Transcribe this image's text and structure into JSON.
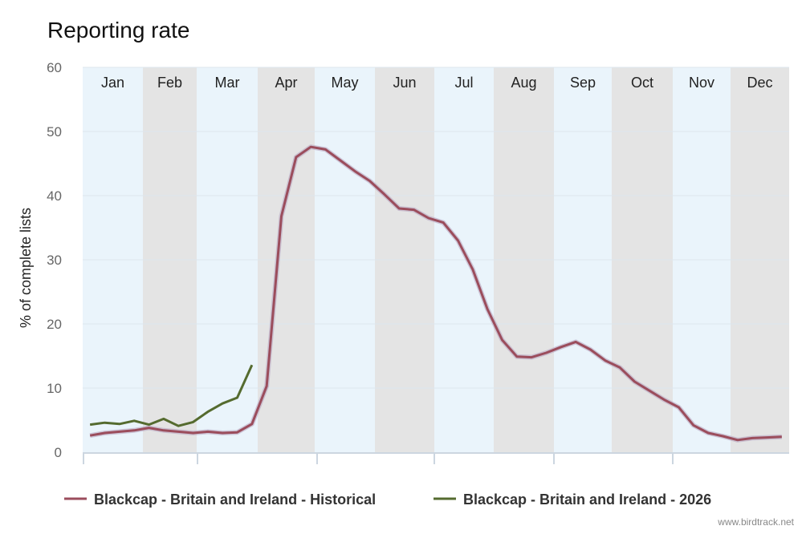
{
  "chart_data": {
    "type": "line",
    "title": "Reporting rate",
    "ylabel": "% of complete lists",
    "xlabel": "",
    "ylim": [
      0,
      60
    ],
    "yticks": [
      0,
      10,
      20,
      30,
      40,
      50,
      60
    ],
    "months": [
      "Jan",
      "Feb",
      "Mar",
      "Apr",
      "May",
      "Jun",
      "Jul",
      "Aug",
      "Sep",
      "Oct",
      "Nov",
      "Dec"
    ],
    "points_per_year": 48,
    "grid": true,
    "legend_position": "bottom",
    "series": [
      {
        "name": "Blackcap - Britain and Ireland - Historical",
        "color": "#9b4d5c",
        "values": [
          2.6,
          3.0,
          3.2,
          3.4,
          3.8,
          3.4,
          3.2,
          3.0,
          3.2,
          3.0,
          3.1,
          4.4,
          10.3,
          36.8,
          46.0,
          47.6,
          47.2,
          45.5,
          43.8,
          42.3,
          40.2,
          38.0,
          37.8,
          36.5,
          35.8,
          33.0,
          28.5,
          22.3,
          17.5,
          14.9,
          14.8,
          15.5,
          16.4,
          17.2,
          16.0,
          14.3,
          13.2,
          11.0,
          9.6,
          8.2,
          7.0,
          4.2,
          3.0,
          2.5,
          1.9,
          2.2,
          2.3,
          2.4
        ]
      },
      {
        "name": "Blackcap - Britain and Ireland - 2026",
        "color": "#556b2f",
        "values": [
          4.3,
          4.6,
          4.4,
          4.9,
          4.3,
          5.2,
          4.1,
          4.7,
          6.3,
          7.6,
          8.5,
          13.6
        ]
      }
    ],
    "band_colors": [
      "#eaf4fb",
      "#e4e4e4"
    ]
  },
  "credit": "www.birdtrack.net"
}
